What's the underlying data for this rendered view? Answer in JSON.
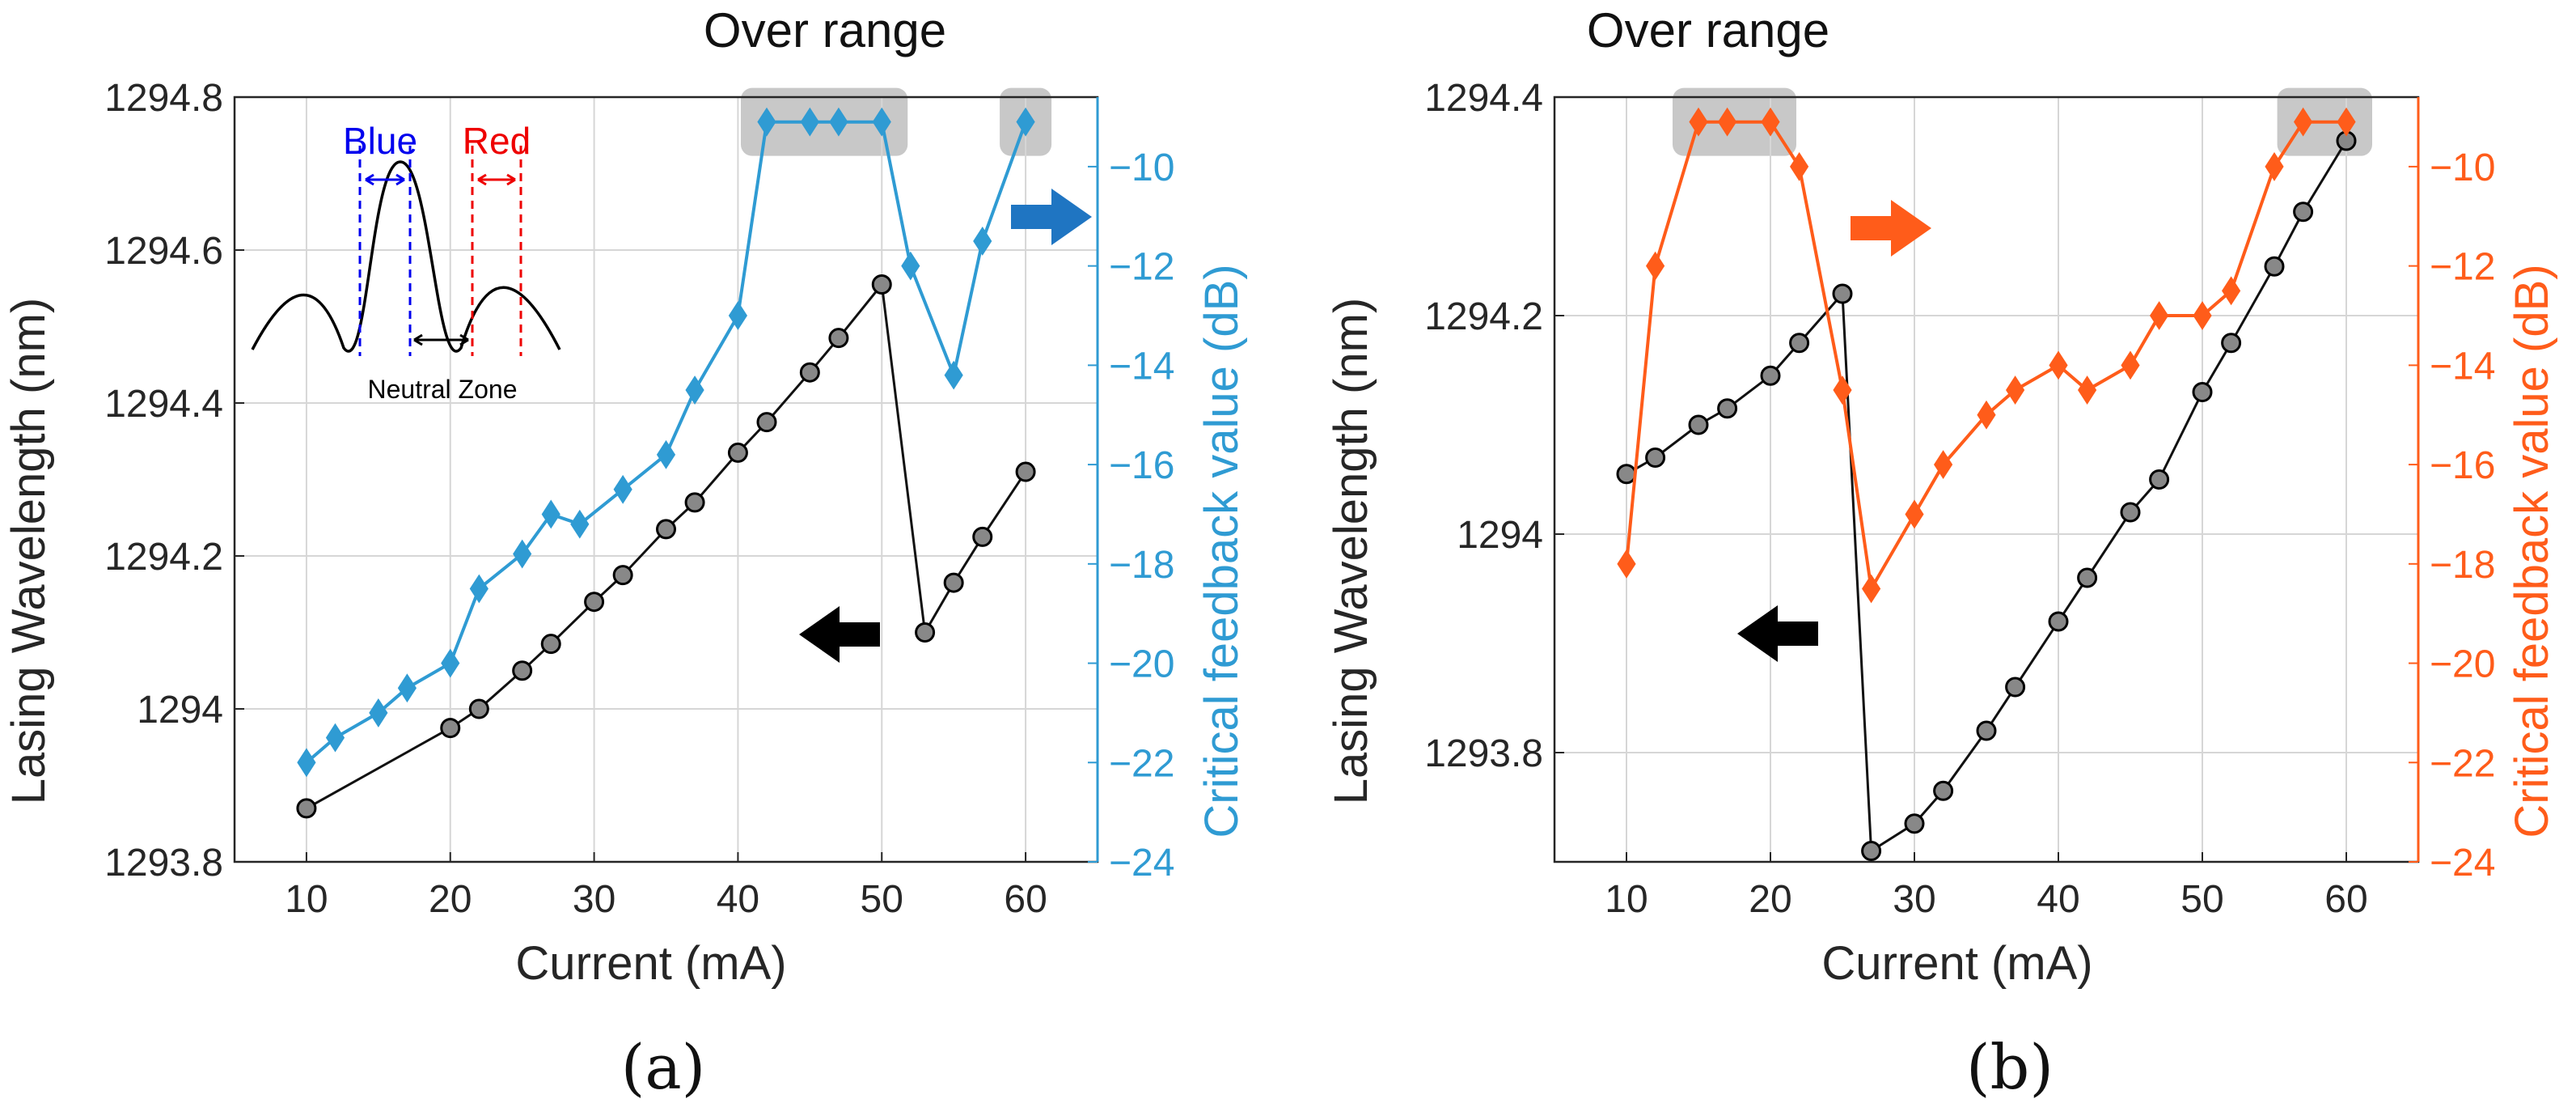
{
  "colors": {
    "black_series": "#111111",
    "marker_gray": "#888888",
    "blue": "#2f9bd3",
    "blue_arrow": "#1f75c2",
    "orange": "#ff5c1a",
    "grid": "#d6d6d6",
    "highlight": "#c8c8c8",
    "inset_blue": "#0000ee",
    "inset_red": "#ee0000"
  },
  "chart_data": [
    {
      "type": "line",
      "panel_label": "(a)",
      "title": "Over range",
      "xlabel": "Current (mA)",
      "ylabel": "Lasing Wavelength (nm)",
      "ylabel_right": "Critical feedback value (dB)",
      "xlim": [
        5,
        65
      ],
      "ylim": [
        1293.8,
        1294.8
      ],
      "ylim_right": [
        -24,
        -8.6
      ],
      "xticks": [
        10,
        20,
        30,
        40,
        50,
        60
      ],
      "xtick_labels": [
        "10",
        "20",
        "30",
        "40",
        "50",
        "60"
      ],
      "yticks": [
        1293.8,
        1294,
        1294.2,
        1294.4,
        1294.6,
        1294.8
      ],
      "ytick_labels": [
        "1293.8",
        "1294",
        "1294.2",
        "1294.4",
        "1294.6",
        "1294.8"
      ],
      "yticks_right": [
        -24,
        -22,
        -20,
        -18,
        -16,
        -14,
        -12,
        -10
      ],
      "ytick_labels_right": [
        "-24",
        "-22",
        "-20",
        "-18",
        "-16",
        "-14",
        "-12",
        "-10"
      ],
      "grid": true,
      "over_range_groups": [
        [
          42,
          50
        ],
        [
          60,
          60
        ]
      ],
      "series": [
        {
          "name": "Lasing Wavelength",
          "axis": "left",
          "marker": "circle",
          "x": [
            10,
            20,
            22,
            25,
            27,
            30,
            32,
            35,
            37,
            40,
            42,
            45,
            47,
            50,
            53,
            55,
            57,
            60
          ],
          "values": [
            1293.87,
            1293.975,
            1294.0,
            1294.05,
            1294.085,
            1294.14,
            1294.175,
            1294.235,
            1294.27,
            1294.335,
            1294.375,
            1294.44,
            1294.485,
            1294.555,
            1294.1,
            1294.165,
            1294.225,
            1294.31
          ]
        },
        {
          "name": "Critical feedback value",
          "axis": "right",
          "marker": "diamond",
          "x": [
            10,
            12,
            15,
            17,
            20,
            22,
            25,
            27,
            29,
            32,
            35,
            37,
            40,
            42,
            45,
            47,
            50,
            52,
            55,
            57,
            60
          ],
          "values": [
            -22,
            -21.5,
            -21,
            -20.5,
            -20,
            -18.5,
            -17.8,
            -17,
            -17.2,
            -16.5,
            -15.8,
            -14.5,
            -13,
            -9.1,
            -9.1,
            -9.1,
            -9.1,
            -12,
            -14.2,
            -11.5,
            -9.1
          ]
        }
      ],
      "inset": {
        "blue_label": "Blue",
        "red_label": "Red",
        "neutral_label": "Neutral Zone"
      }
    },
    {
      "type": "line",
      "panel_label": "(b)",
      "title": "Over range",
      "xlabel": "Current (mA)",
      "ylabel": "Lasing Wavelength (nm)",
      "ylabel_right": "Critical feedback value (dB)",
      "xlim": [
        5,
        65
      ],
      "ylim": [
        1293.7,
        1294.4
      ],
      "ylim_right": [
        -24,
        -8.6
      ],
      "xticks": [
        10,
        20,
        30,
        40,
        50,
        60
      ],
      "xtick_labels": [
        "10",
        "20",
        "30",
        "40",
        "50",
        "60"
      ],
      "yticks": [
        1293.8,
        1294,
        1294.2,
        1294.4
      ],
      "ytick_labels": [
        "1293.8",
        "1294",
        "1294.2",
        "1294.4"
      ],
      "yticks_right": [
        -24,
        -22,
        -20,
        -18,
        -16,
        -14,
        -12,
        -10
      ],
      "ytick_labels_right": [
        "-24",
        "-22",
        "-20",
        "-18",
        "-16",
        "-14",
        "-12",
        "-10"
      ],
      "grid": true,
      "over_range_groups": [
        [
          15,
          20
        ],
        [
          57,
          60
        ]
      ],
      "series": [
        {
          "name": "Lasing Wavelength",
          "axis": "left",
          "marker": "circle",
          "x": [
            10,
            12,
            15,
            17,
            20,
            22,
            25,
            27,
            30,
            32,
            35,
            37,
            40,
            42,
            45,
            47,
            50,
            52,
            55,
            57,
            60
          ],
          "values": [
            1294.055,
            1294.07,
            1294.1,
            1294.115,
            1294.145,
            1294.175,
            1294.22,
            1293.71,
            1293.735,
            1293.765,
            1293.82,
            1293.86,
            1293.92,
            1293.96,
            1294.02,
            1294.05,
            1294.13,
            1294.175,
            1294.245,
            1294.295,
            1294.36
          ]
        },
        {
          "name": "Critical feedback value",
          "axis": "right",
          "marker": "diamond",
          "x": [
            10,
            12,
            15,
            17,
            20,
            22,
            25,
            27,
            30,
            32,
            35,
            37,
            40,
            42,
            45,
            47,
            50,
            52,
            55,
            57,
            60
          ],
          "values": [
            -18,
            -12,
            -9.1,
            -9.1,
            -9.1,
            -10,
            -14.5,
            -18.5,
            -17,
            -16,
            -15,
            -14.5,
            -14,
            -14.5,
            -14,
            -13,
            -13,
            -12.5,
            -10,
            -9.1,
            -9.1
          ]
        }
      ]
    }
  ]
}
